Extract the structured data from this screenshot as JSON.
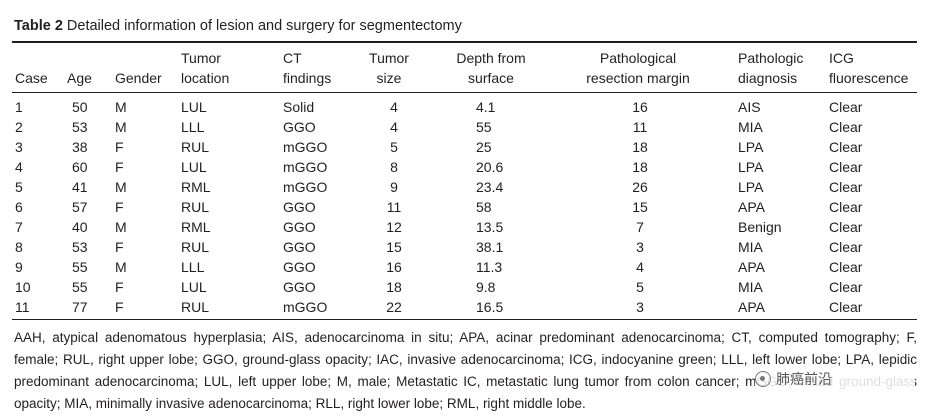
{
  "caption": {
    "label": "Table 2",
    "text": "Detailed information of lesion and surgery for segmentectomy"
  },
  "headers": [
    [
      "Case"
    ],
    [
      "Age"
    ],
    [
      "Gender"
    ],
    [
      "Tumor",
      "location"
    ],
    [
      "CT",
      "findings"
    ],
    [
      "Tumor",
      "size"
    ],
    [
      "Depth from",
      "surface"
    ],
    [
      "Pathological",
      "resection margin"
    ],
    [
      "Pathologic",
      "diagnosis"
    ],
    [
      "ICG",
      "fluorescence"
    ]
  ],
  "rows": [
    [
      "1",
      "50",
      "M",
      "LUL",
      "Solid",
      "4",
      "4.1",
      "16",
      "AIS",
      "Clear"
    ],
    [
      "2",
      "53",
      "M",
      "LLL",
      "GGO",
      "4",
      "55",
      "11",
      "MIA",
      "Clear"
    ],
    [
      "3",
      "38",
      "F",
      "RUL",
      "mGGO",
      "5",
      "25",
      "18",
      "LPA",
      "Clear"
    ],
    [
      "4",
      "60",
      "F",
      "LUL",
      "mGGO",
      "8",
      "20.6",
      "18",
      "LPA",
      "Clear"
    ],
    [
      "5",
      "41",
      "M",
      "RML",
      "mGGO",
      "9",
      "23.4",
      "26",
      "LPA",
      "Clear"
    ],
    [
      "6",
      "57",
      "F",
      "RUL",
      "GGO",
      "11",
      "58",
      "15",
      "APA",
      "Clear"
    ],
    [
      "7",
      "40",
      "M",
      "RML",
      "GGO",
      "12",
      "13.5",
      "7",
      "Benign",
      "Clear"
    ],
    [
      "8",
      "53",
      "F",
      "RUL",
      "GGO",
      "15",
      "38.1",
      "3",
      "MIA",
      "Clear"
    ],
    [
      "9",
      "55",
      "M",
      "LLL",
      "GGO",
      "16",
      "11.3",
      "4",
      "APA",
      "Clear"
    ],
    [
      "10",
      "55",
      "F",
      "LUL",
      "GGO",
      "18",
      "9.8",
      "5",
      "MIA",
      "Clear"
    ],
    [
      "11",
      "77",
      "F",
      "RUL",
      "mGGO",
      "22",
      "16.5",
      "3",
      "APA",
      "Clear"
    ]
  ],
  "footnote": "AAH, atypical adenomatous hyperplasia; AIS, adenocarcinoma in situ; APA, acinar predominant adenocarcinoma; CT, computed tomography; F, female; RUL, right upper lobe; GGO, ground-glass opacity; IAC, invasive adenocarcinoma; ICG, indocyanine green; LLL, left lower lobe; LPA, lepidic predominant adenocarcinoma; LUL, left upper lobe; M, male; Metastatic IC, metastatic lung tumor from colon cancer; mGGO, mixed ground-glass opacity; MIA, minimally invasive adenocarcinoma; RLL, right lower lobe; RML, right middle lobe.",
  "watermark": {
    "text": "肺癌前沿",
    "icon": "wechat-channel-icon"
  }
}
